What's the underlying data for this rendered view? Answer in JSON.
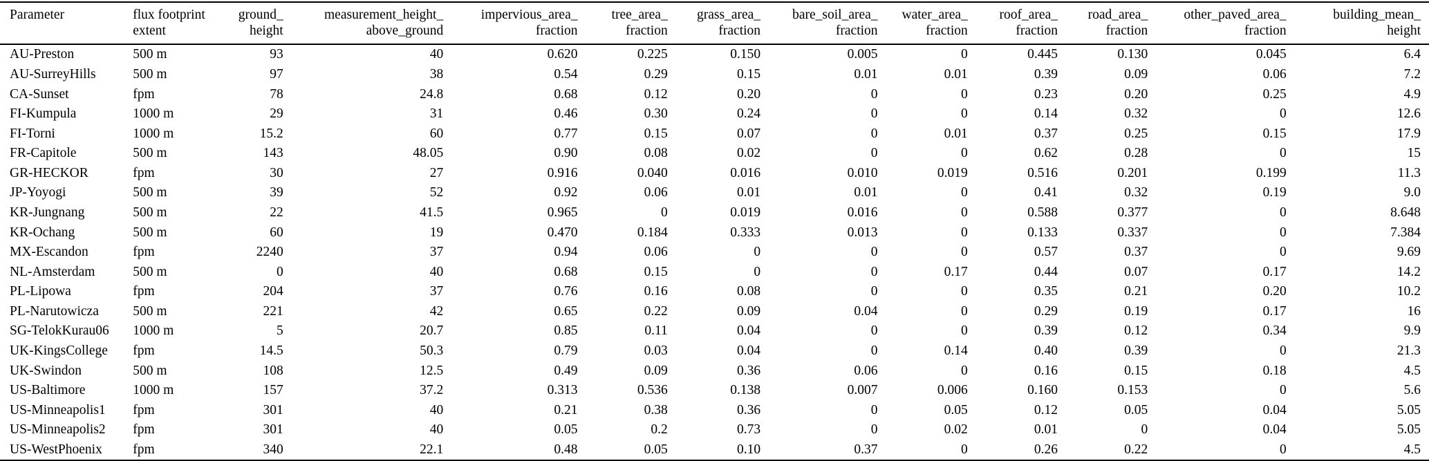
{
  "table": {
    "name": "site-characteristics-table",
    "columns": [
      {
        "id": "parameter",
        "label_lines": [
          "Parameter"
        ],
        "align": "left"
      },
      {
        "id": "flux_footprint_extent",
        "label_lines": [
          "flux footprint",
          "extent"
        ],
        "align": "left"
      },
      {
        "id": "ground_height",
        "label_lines": [
          "ground_",
          "height"
        ],
        "align": "right"
      },
      {
        "id": "measurement_height_above_ground",
        "label_lines": [
          "measurement_height_",
          "above_ground"
        ],
        "align": "right"
      },
      {
        "id": "impervious_area_fraction",
        "label_lines": [
          "impervious_area_",
          "fraction"
        ],
        "align": "right"
      },
      {
        "id": "tree_area_fraction",
        "label_lines": [
          "tree_area_",
          "fraction"
        ],
        "align": "right"
      },
      {
        "id": "grass_area_fraction",
        "label_lines": [
          "grass_area_",
          "fraction"
        ],
        "align": "right"
      },
      {
        "id": "bare_soil_area_fraction",
        "label_lines": [
          "bare_soil_area_",
          "fraction"
        ],
        "align": "right"
      },
      {
        "id": "water_area_fraction",
        "label_lines": [
          "water_area_",
          "fraction"
        ],
        "align": "right"
      },
      {
        "id": "roof_area_fraction",
        "label_lines": [
          "roof_area_",
          "fraction"
        ],
        "align": "right"
      },
      {
        "id": "road_area_fraction",
        "label_lines": [
          "road_area_",
          "fraction"
        ],
        "align": "right"
      },
      {
        "id": "other_paved_area_fraction",
        "label_lines": [
          "other_paved_area_",
          "fraction"
        ],
        "align": "right"
      },
      {
        "id": "building_mean_height",
        "label_lines": [
          "building_mean_",
          "height"
        ],
        "align": "right"
      }
    ],
    "rows": [
      [
        "AU-Preston",
        "500 m",
        "93",
        "40",
        "0.620",
        "0.225",
        "0.150",
        "0.005",
        "0",
        "0.445",
        "0.130",
        "0.045",
        "6.4"
      ],
      [
        "AU-SurreyHills",
        "500 m",
        "97",
        "38",
        "0.54",
        "0.29",
        "0.15",
        "0.01",
        "0.01",
        "0.39",
        "0.09",
        "0.06",
        "7.2"
      ],
      [
        "CA-Sunset",
        "fpm",
        "78",
        "24.8",
        "0.68",
        "0.12",
        "0.20",
        "0",
        "0",
        "0.23",
        "0.20",
        "0.25",
        "4.9"
      ],
      [
        "FI-Kumpula",
        "1000 m",
        "29",
        "31",
        "0.46",
        "0.30",
        "0.24",
        "0",
        "0",
        "0.14",
        "0.32",
        "0",
        "12.6"
      ],
      [
        "FI-Torni",
        "1000 m",
        "15.2",
        "60",
        "0.77",
        "0.15",
        "0.07",
        "0",
        "0.01",
        "0.37",
        "0.25",
        "0.15",
        "17.9"
      ],
      [
        "FR-Capitole",
        "500 m",
        "143",
        "48.05",
        "0.90",
        "0.08",
        "0.02",
        "0",
        "0",
        "0.62",
        "0.28",
        "0",
        "15"
      ],
      [
        "GR-HECKOR",
        "fpm",
        "30",
        "27",
        "0.916",
        "0.040",
        "0.016",
        "0.010",
        "0.019",
        "0.516",
        "0.201",
        "0.199",
        "11.3"
      ],
      [
        "JP-Yoyogi",
        "500 m",
        "39",
        "52",
        "0.92",
        "0.06",
        "0.01",
        "0.01",
        "0",
        "0.41",
        "0.32",
        "0.19",
        "9.0"
      ],
      [
        "KR-Jungnang",
        "500 m",
        "22",
        "41.5",
        "0.965",
        "0",
        "0.019",
        "0.016",
        "0",
        "0.588",
        "0.377",
        "0",
        "8.648"
      ],
      [
        "KR-Ochang",
        "500 m",
        "60",
        "19",
        "0.470",
        "0.184",
        "0.333",
        "0.013",
        "0",
        "0.133",
        "0.337",
        "0",
        "7.384"
      ],
      [
        "MX-Escandon",
        "fpm",
        "2240",
        "37",
        "0.94",
        "0.06",
        "0",
        "0",
        "0",
        "0.57",
        "0.37",
        "0",
        "9.69"
      ],
      [
        "NL-Amsterdam",
        "500 m",
        "0",
        "40",
        "0.68",
        "0.15",
        "0",
        "0",
        "0.17",
        "0.44",
        "0.07",
        "0.17",
        "14.2"
      ],
      [
        "PL-Lipowa",
        "fpm",
        "204",
        "37",
        "0.76",
        "0.16",
        "0.08",
        "0",
        "0",
        "0.35",
        "0.21",
        "0.20",
        "10.2"
      ],
      [
        "PL-Narutowicza",
        "500 m",
        "221",
        "42",
        "0.65",
        "0.22",
        "0.09",
        "0.04",
        "0",
        "0.29",
        "0.19",
        "0.17",
        "16"
      ],
      [
        "SG-TelokKurau06",
        "1000 m",
        "5",
        "20.7",
        "0.85",
        "0.11",
        "0.04",
        "0",
        "0",
        "0.39",
        "0.12",
        "0.34",
        "9.9"
      ],
      [
        "UK-KingsCollege",
        "fpm",
        "14.5",
        "50.3",
        "0.79",
        "0.03",
        "0.04",
        "0",
        "0.14",
        "0.40",
        "0.39",
        "0",
        "21.3"
      ],
      [
        "UK-Swindon",
        "500 m",
        "108",
        "12.5",
        "0.49",
        "0.09",
        "0.36",
        "0.06",
        "0",
        "0.16",
        "0.15",
        "0.18",
        "4.5"
      ],
      [
        "US-Baltimore",
        "1000 m",
        "157",
        "37.2",
        "0.313",
        "0.536",
        "0.138",
        "0.007",
        "0.006",
        "0.160",
        "0.153",
        "0",
        "5.6"
      ],
      [
        "US-Minneapolis1",
        "fpm",
        "301",
        "40",
        "0.21",
        "0.38",
        "0.36",
        "0",
        "0.05",
        "0.12",
        "0.05",
        "0.04",
        "5.05"
      ],
      [
        "US-Minneapolis2",
        "fpm",
        "301",
        "40",
        "0.05",
        "0.2",
        "0.73",
        "0",
        "0.02",
        "0.01",
        "0",
        "0.04",
        "5.05"
      ],
      [
        "US-WestPhoenix",
        "fpm",
        "340",
        "22.1",
        "0.48",
        "0.05",
        "0.10",
        "0.37",
        "0",
        "0.26",
        "0.22",
        "0",
        "4.5"
      ]
    ]
  }
}
